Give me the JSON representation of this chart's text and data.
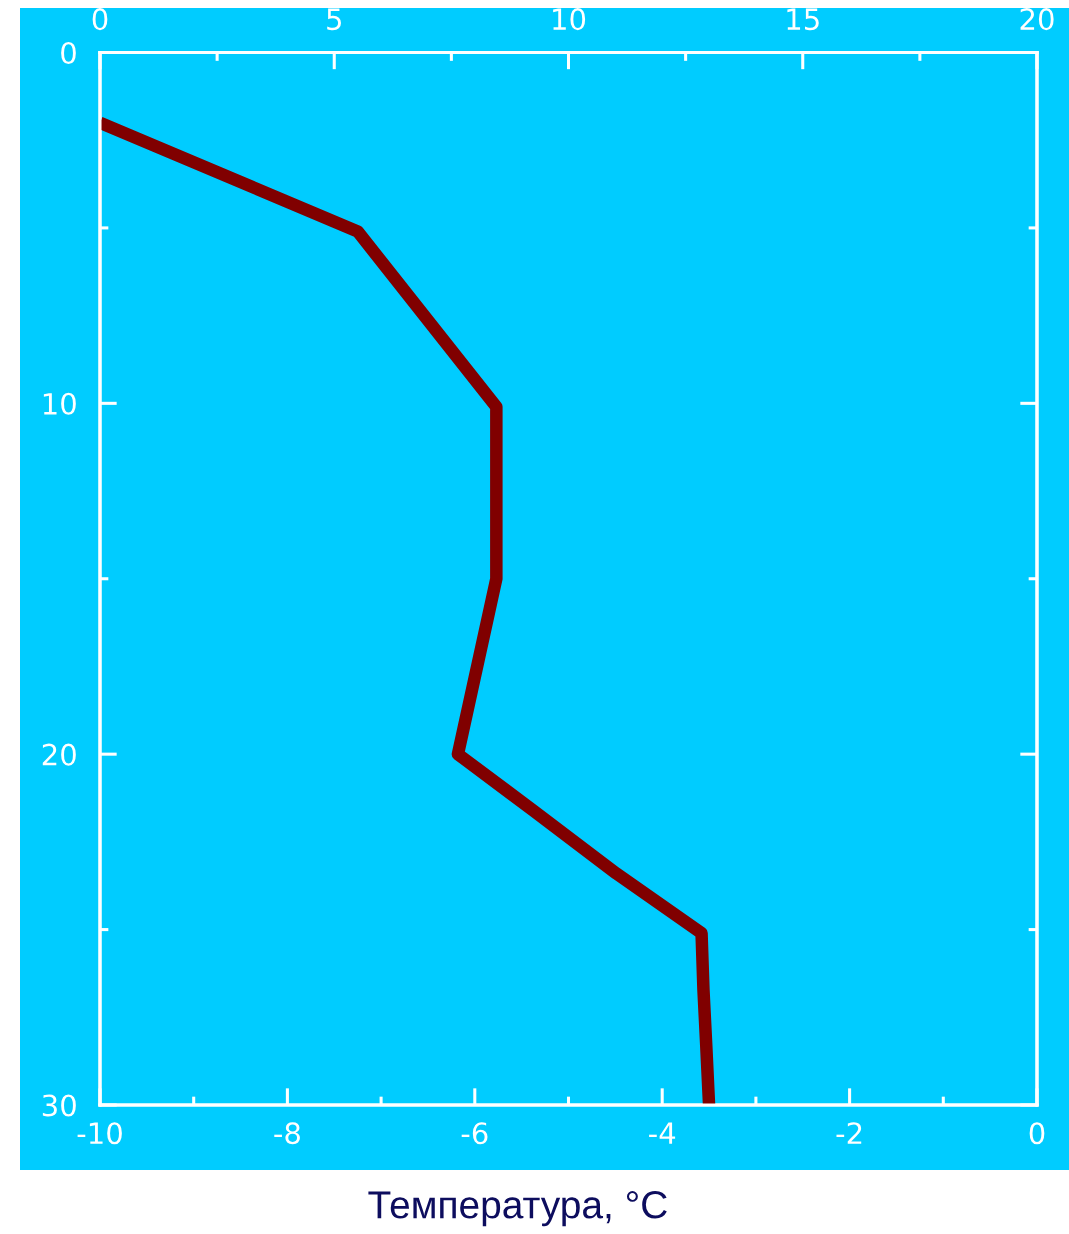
{
  "chart_data": {
    "type": "line",
    "xlabel": "Температура, °C",
    "series": [
      {
        "color": "#800000",
        "x": [
          -10,
          -7.25,
          -5.77,
          -5.77,
          -6.18,
          -5.38,
          -4.49,
          -3.58,
          -3.56,
          -3.53,
          -3.5
        ],
        "values": [
          2,
          5.1,
          10.1,
          15,
          20,
          21.6,
          23.4,
          25.1,
          26.7,
          28.3,
          30
        ]
      }
    ],
    "xlim": [
      -10,
      0
    ],
    "xticks": [
      -10,
      {
        "value": -9,
        "label": null
      },
      -8,
      {
        "value": -7,
        "label": null
      },
      -6,
      {
        "value": -5,
        "label": null
      },
      -4,
      {
        "value": -3,
        "label": null
      },
      -2,
      {
        "value": -1,
        "label": null
      },
      0
    ],
    "x2lim": [
      0,
      20
    ],
    "x2ticks": [
      0,
      {
        "value": 2.5,
        "label": null
      },
      5,
      {
        "value": 7.5,
        "label": null
      },
      10,
      {
        "value": 12.5,
        "label": null
      },
      15,
      {
        "value": 17.5,
        "label": null
      },
      20
    ],
    "ylim": [
      30,
      0
    ],
    "yticks": [
      0,
      {
        "value": 5,
        "label": null
      },
      10,
      {
        "value": 15,
        "label": null
      },
      20,
      {
        "value": 25,
        "label": null
      },
      30
    ],
    "line_style": "solid"
  }
}
